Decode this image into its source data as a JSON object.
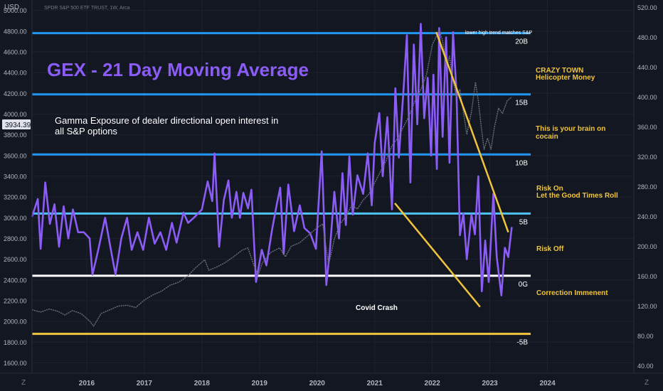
{
  "header": {
    "currency": "USD",
    "symbol": "SPDR S&P 500 ETF TRUST, 1W, Arca",
    "price_badge": "3934.39"
  },
  "footer": {
    "left_tool": "Z",
    "right_tool": "Z"
  },
  "colors": {
    "background": "#131722",
    "gex_line": "#8B5CF6",
    "spy_line": "#6b6f7a",
    "blue_level": "#2196F3",
    "white_level": "#ffffff",
    "yellow_level": "#F0C43C",
    "title": "#8B5CF6",
    "annotation_yellow": "#F0C43C",
    "annotation_white": "#ffffff"
  },
  "chart_data": {
    "type": "line",
    "title": "GEX - 21 Day Moving Average",
    "subtitle": "Gamma Exposure of dealer directional open interest in all S&P options",
    "x_ticks": [
      "2016",
      "2017",
      "2018",
      "2019",
      "2020",
      "2021",
      "2022",
      "2023",
      "2024"
    ],
    "x_range": [
      2015.05,
      2025.5
    ],
    "left_axis": {
      "label": "USD",
      "ticks": [
        "5000.00",
        "4800.00",
        "4600.00",
        "4400.00",
        "4200.00",
        "4000.00",
        "3800.00",
        "3600.00",
        "3400.00",
        "3200.00",
        "3000.00",
        "2800.00",
        "2600.00",
        "2400.00",
        "2200.00",
        "2000.00",
        "1800.00",
        "1600.00"
      ],
      "range": [
        1500,
        5100
      ]
    },
    "right_axis": {
      "ticks": [
        "520.00",
        "480.00",
        "440.00",
        "400.00",
        "360.00",
        "320.00",
        "280.00",
        "240.00",
        "200.00",
        "160.00",
        "120.00",
        "80.00",
        "40.00"
      ],
      "range": [
        30,
        530
      ]
    },
    "gex_levels": [
      {
        "label": "20B",
        "value": 4780,
        "color": "#2196F3"
      },
      {
        "label": "15B",
        "value": 4190,
        "color": "#2196F3"
      },
      {
        "label": "10B",
        "value": 3610,
        "color": "#2196F3"
      },
      {
        "label": "5B",
        "value": 3040,
        "color": "#4FC3F7"
      },
      {
        "label": "0G",
        "value": 2440,
        "color": "#ffffff"
      },
      {
        "label": "-5B",
        "value": 1880,
        "color": "#F0C43C"
      }
    ],
    "series": [
      {
        "name": "GEX",
        "axis": "left",
        "points": [
          [
            2015.05,
            3010
          ],
          [
            2015.15,
            3180
          ],
          [
            2015.2,
            2700
          ],
          [
            2015.28,
            3340
          ],
          [
            2015.36,
            2940
          ],
          [
            2015.44,
            3130
          ],
          [
            2015.52,
            2720
          ],
          [
            2015.6,
            3110
          ],
          [
            2015.68,
            2800
          ],
          [
            2015.76,
            3080
          ],
          [
            2015.85,
            2860
          ],
          [
            2015.95,
            2860
          ],
          [
            2016.05,
            2800
          ],
          [
            2016.1,
            2450
          ],
          [
            2016.2,
            2690
          ],
          [
            2016.32,
            3000
          ],
          [
            2016.42,
            2690
          ],
          [
            2016.5,
            2450
          ],
          [
            2016.6,
            2800
          ],
          [
            2016.7,
            3000
          ],
          [
            2016.78,
            2690
          ],
          [
            2016.88,
            2860
          ],
          [
            2016.98,
            2690
          ],
          [
            2017.08,
            3000
          ],
          [
            2017.18,
            2750
          ],
          [
            2017.28,
            2860
          ],
          [
            2017.38,
            2690
          ],
          [
            2017.48,
            2950
          ],
          [
            2017.56,
            2760
          ],
          [
            2017.68,
            3050
          ],
          [
            2017.76,
            2950
          ],
          [
            2017.86,
            3000
          ],
          [
            2018.0,
            3080
          ],
          [
            2018.1,
            3350
          ],
          [
            2018.18,
            3160
          ],
          [
            2018.22,
            3620
          ],
          [
            2018.3,
            2720
          ],
          [
            2018.38,
            3170
          ],
          [
            2018.46,
            3360
          ],
          [
            2018.52,
            3000
          ],
          [
            2018.6,
            3250
          ],
          [
            2018.66,
            3000
          ],
          [
            2018.72,
            3240
          ],
          [
            2018.8,
            3090
          ],
          [
            2018.86,
            3270
          ],
          [
            2018.94,
            2380
          ],
          [
            2019.04,
            2690
          ],
          [
            2019.12,
            2540
          ],
          [
            2019.22,
            2890
          ],
          [
            2019.3,
            3130
          ],
          [
            2019.36,
            3290
          ],
          [
            2019.42,
            2650
          ],
          [
            2019.5,
            3320
          ],
          [
            2019.6,
            2870
          ],
          [
            2019.7,
            3120
          ],
          [
            2019.78,
            2900
          ],
          [
            2019.88,
            2850
          ],
          [
            2019.98,
            2700
          ],
          [
            2020.08,
            3640
          ],
          [
            2020.16,
            2350
          ],
          [
            2020.22,
            2670
          ],
          [
            2020.3,
            3250
          ],
          [
            2020.38,
            2800
          ],
          [
            2020.44,
            3430
          ],
          [
            2020.5,
            2930
          ],
          [
            2020.56,
            3590
          ],
          [
            2020.62,
            3030
          ],
          [
            2020.7,
            3410
          ],
          [
            2020.8,
            3230
          ],
          [
            2020.88,
            3620
          ],
          [
            2020.95,
            3120
          ],
          [
            2021.0,
            3720
          ],
          [
            2021.08,
            4010
          ],
          [
            2021.14,
            3400
          ],
          [
            2021.22,
            3970
          ],
          [
            2021.3,
            3080
          ],
          [
            2021.36,
            4250
          ],
          [
            2021.42,
            3580
          ],
          [
            2021.5,
            4230
          ],
          [
            2021.56,
            4760
          ],
          [
            2021.62,
            3340
          ],
          [
            2021.68,
            4670
          ],
          [
            2021.74,
            3900
          ],
          [
            2021.8,
            4870
          ],
          [
            2021.86,
            3960
          ],
          [
            2021.92,
            4350
          ],
          [
            2021.98,
            3600
          ],
          [
            2022.02,
            4380
          ],
          [
            2022.08,
            3470
          ],
          [
            2022.12,
            4830
          ],
          [
            2022.18,
            3780
          ],
          [
            2022.24,
            4740
          ],
          [
            2022.3,
            3530
          ],
          [
            2022.36,
            4790
          ],
          [
            2022.42,
            4210
          ],
          [
            2022.48,
            2830
          ],
          [
            2022.54,
            3040
          ],
          [
            2022.6,
            2600
          ],
          [
            2022.68,
            3030
          ],
          [
            2022.74,
            2840
          ],
          [
            2022.8,
            3400
          ],
          [
            2022.86,
            2290
          ],
          [
            2022.92,
            2780
          ],
          [
            2022.98,
            2380
          ],
          [
            2023.06,
            3230
          ],
          [
            2023.12,
            2620
          ],
          [
            2023.2,
            2250
          ],
          [
            2023.26,
            2710
          ],
          [
            2023.32,
            2620
          ],
          [
            2023.38,
            2910
          ]
        ]
      },
      {
        "name": "SPY",
        "axis": "right",
        "points": [
          [
            2015.05,
            115
          ],
          [
            2015.2,
            112
          ],
          [
            2015.35,
            116
          ],
          [
            2015.5,
            113
          ],
          [
            2015.62,
            108
          ],
          [
            2015.75,
            114
          ],
          [
            2015.9,
            110
          ],
          [
            2016.05,
            100
          ],
          [
            2016.12,
            93
          ],
          [
            2016.25,
            110
          ],
          [
            2016.4,
            115
          ],
          [
            2016.55,
            120
          ],
          [
            2016.7,
            121
          ],
          [
            2016.85,
            118
          ],
          [
            2017.0,
            128
          ],
          [
            2017.15,
            135
          ],
          [
            2017.3,
            140
          ],
          [
            2017.45,
            148
          ],
          [
            2017.6,
            152
          ],
          [
            2017.75,
            160
          ],
          [
            2017.9,
            172
          ],
          [
            2018.05,
            182
          ],
          [
            2018.12,
            168
          ],
          [
            2018.25,
            172
          ],
          [
            2018.4,
            178
          ],
          [
            2018.55,
            186
          ],
          [
            2018.7,
            195
          ],
          [
            2018.8,
            198
          ],
          [
            2018.9,
            175
          ],
          [
            2018.98,
            162
          ],
          [
            2019.05,
            178
          ],
          [
            2019.2,
            192
          ],
          [
            2019.35,
            198
          ],
          [
            2019.45,
            186
          ],
          [
            2019.55,
            200
          ],
          [
            2019.7,
            205
          ],
          [
            2019.85,
            215
          ],
          [
            2020.0,
            225
          ],
          [
            2020.1,
            230
          ],
          [
            2020.2,
            175
          ],
          [
            2020.3,
            210
          ],
          [
            2020.4,
            230
          ],
          [
            2020.5,
            240
          ],
          [
            2020.6,
            255
          ],
          [
            2020.7,
            250
          ],
          [
            2020.8,
            262
          ],
          [
            2020.9,
            270
          ],
          [
            2021.0,
            285
          ],
          [
            2021.1,
            300
          ],
          [
            2021.2,
            315
          ],
          [
            2021.3,
            335
          ],
          [
            2021.4,
            345
          ],
          [
            2021.5,
            360
          ],
          [
            2021.6,
            375
          ],
          [
            2021.7,
            395
          ],
          [
            2021.8,
            410
          ],
          [
            2021.9,
            430
          ],
          [
            2022.0,
            470
          ],
          [
            2022.05,
            478
          ],
          [
            2022.12,
            490
          ],
          [
            2022.18,
            475
          ],
          [
            2022.25,
            440
          ],
          [
            2022.3,
            455
          ],
          [
            2022.35,
            425
          ],
          [
            2022.42,
            400
          ],
          [
            2022.48,
            410
          ],
          [
            2022.55,
            375
          ],
          [
            2022.6,
            350
          ],
          [
            2022.68,
            380
          ],
          [
            2022.75,
            420
          ],
          [
            2022.8,
            395
          ],
          [
            2022.85,
            360
          ],
          [
            2022.9,
            330
          ],
          [
            2022.96,
            345
          ],
          [
            2023.02,
            330
          ],
          [
            2023.08,
            360
          ],
          [
            2023.15,
            385
          ],
          [
            2023.22,
            378
          ],
          [
            2023.3,
            395
          ],
          [
            2023.38,
            400
          ]
        ]
      }
    ],
    "trend_lines": [
      {
        "from": [
          2022.07,
          4790
        ],
        "to": [
          2023.32,
          2860
        ]
      },
      {
        "from": [
          2021.35,
          3140
        ],
        "to": [
          2022.83,
          2140
        ]
      }
    ],
    "annotations": [
      {
        "text": "lower high trend matches S&P",
        "color": "#ffffff"
      },
      {
        "text": "CRAZY TOWN",
        "color": "#F0C43C"
      },
      {
        "text": "Helicopter Money",
        "color": "#F0C43C"
      },
      {
        "text": "This is your brain on",
        "color": "#F0C43C"
      },
      {
        "text": "cocain",
        "color": "#F0C43C"
      },
      {
        "text": "Risk On",
        "color": "#F0C43C"
      },
      {
        "text": "Let the Good Times Roll",
        "color": "#F0C43C"
      },
      {
        "text": "Risk Off",
        "color": "#F0C43C"
      },
      {
        "text": "Correction Immenent",
        "color": "#F0C43C"
      },
      {
        "text": "Covid Crash",
        "color": "#ffffff"
      }
    ]
  }
}
